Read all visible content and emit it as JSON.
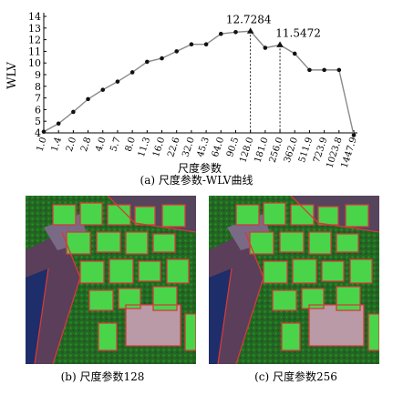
{
  "chart_data": {
    "type": "line",
    "title": "",
    "xlabel": "尺度参数",
    "ylabel": "WLV",
    "categories": [
      "1.0",
      "1.4",
      "2.0",
      "2.8",
      "4.0",
      "5.7",
      "8.0",
      "11.3",
      "16.0",
      "22.6",
      "32.0",
      "45.3",
      "64.0",
      "90.5",
      "128.0",
      "181.0",
      "256.0",
      "362.0",
      "511.9",
      "723.9",
      "1023.8",
      "1447.9"
    ],
    "values": [
      4.1,
      4.8,
      5.8,
      6.9,
      7.7,
      8.4,
      9.2,
      10.1,
      10.4,
      11.0,
      11.6,
      11.6,
      12.5,
      12.65,
      12.7284,
      11.3,
      11.5472,
      10.8,
      9.4,
      9.4,
      9.4,
      3.8
    ],
    "yticks": [
      4,
      5,
      6,
      7,
      8,
      9,
      10,
      11,
      12,
      13,
      14
    ],
    "ylim": [
      4,
      14
    ],
    "grid": false,
    "annotations": [
      {
        "category": "128.0",
        "label": "12.7284"
      },
      {
        "category": "256.0",
        "label": "11.5472"
      }
    ],
    "colors": {
      "line": "#8a8a8a",
      "marker": "#111111",
      "axis": "#000000"
    }
  },
  "captions": {
    "a": "(a) 尺度参数-WLV曲线",
    "b": "(b) 尺度参数128",
    "c": "(c) 尺度参数256"
  }
}
